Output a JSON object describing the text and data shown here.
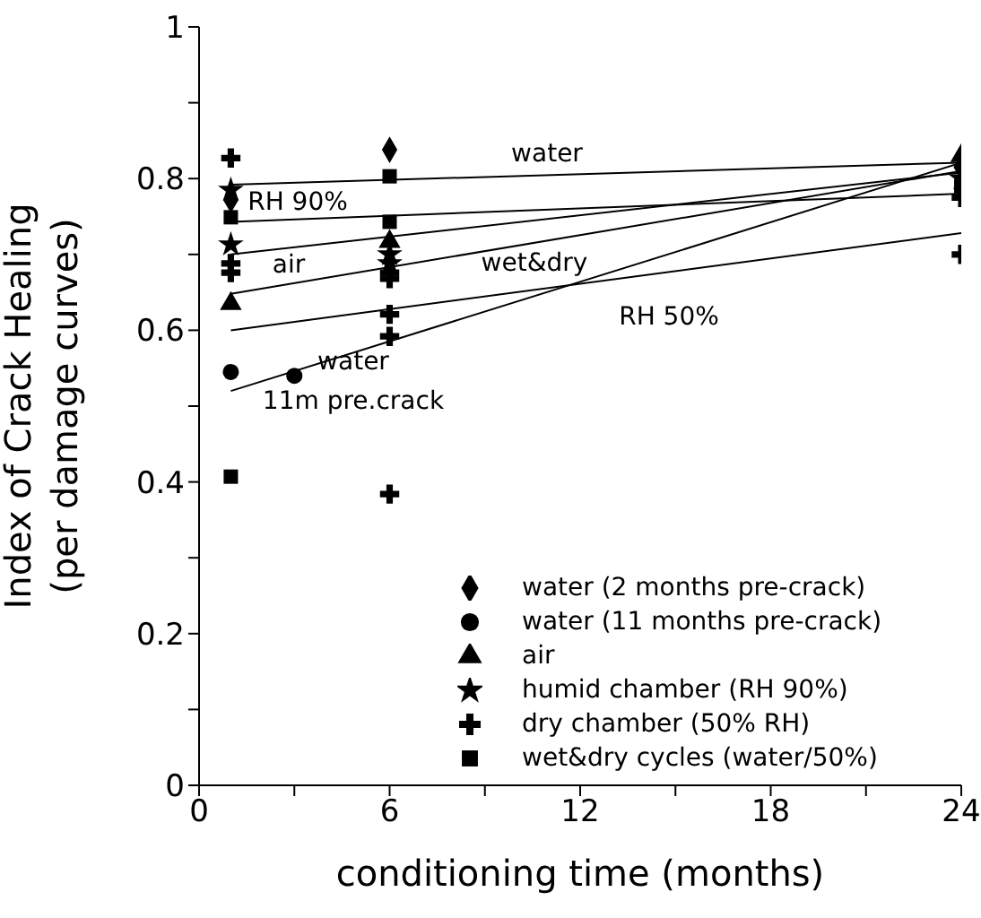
{
  "chart_data": {
    "type": "scatter",
    "xlabel": "conditioning time (months)",
    "ylabel": "Index of Crack Healing (per damage curves)",
    "xlim": [
      0,
      24
    ],
    "xticks": [
      0,
      {
        "value": 3,
        "label": null
      },
      6,
      {
        "value": 9,
        "label": null
      },
      12,
      {
        "value": 15,
        "label": null
      },
      18,
      {
        "value": 21,
        "label": null
      },
      24
    ],
    "ylim": [
      0,
      1
    ],
    "yticks": [
      0,
      {
        "value": 0.1,
        "label": null
      },
      0.2,
      {
        "value": 0.3,
        "label": null
      },
      0.4,
      {
        "value": 0.5,
        "label": null
      },
      0.6,
      {
        "value": 0.7,
        "label": null
      },
      0.8,
      {
        "value": 0.9,
        "label": null
      },
      1
    ],
    "grid": false,
    "legend": "bottom right",
    "series": [
      {
        "name": "water (2 months pre-crack)",
        "marker": "diamond",
        "color": "#000000",
        "x": [
          1,
          6,
          24
        ],
        "values": [
          0.772,
          0.838,
          0.815
        ]
      },
      {
        "name": "water (11 months pre-crack)",
        "marker": "circle",
        "color": "#000000",
        "x": [
          1,
          3
        ],
        "values": [
          0.545,
          0.54
        ]
      },
      {
        "name": "air",
        "marker": "triangle",
        "color": "#000000",
        "x": [
          1,
          6,
          24
        ],
        "values": [
          0.635,
          0.717,
          0.83
        ]
      },
      {
        "name": "humid chamber (RH 90%)",
        "marker": "star",
        "color": "#000000",
        "x": [
          1,
          1,
          6,
          6,
          24
        ],
        "values": [
          0.785,
          0.713,
          0.7,
          0.688,
          0.8
        ]
      },
      {
        "name": "dry chamber (50% RH)",
        "marker": "cross",
        "color": "#000000",
        "x": [
          1,
          1,
          1,
          6,
          6,
          6,
          6,
          6,
          24,
          24
        ],
        "values": [
          0.827,
          0.688,
          0.676,
          0.676,
          0.668,
          0.621,
          0.592,
          0.384,
          0.775,
          0.7
        ]
      },
      {
        "name": "wet&dry cycles (water/50%)",
        "marker": "square",
        "color": "#000000",
        "x": [
          1,
          1,
          6,
          6,
          24
        ],
        "values": [
          0.749,
          0.407,
          0.803,
          0.743,
          0.79
        ]
      },
      {
        "type": "line",
        "marker": "none",
        "color": "#000000",
        "x": [
          1,
          24
        ],
        "values": [
          0.792,
          0.821
        ]
      },
      {
        "type": "line",
        "marker": "none",
        "color": "#000000",
        "x": [
          1,
          24
        ],
        "values": [
          0.743,
          0.78
        ]
      },
      {
        "type": "line",
        "marker": "none",
        "color": "#000000",
        "x": [
          1,
          24
        ],
        "values": [
          0.7,
          0.808
        ]
      },
      {
        "type": "line",
        "marker": "none",
        "color": "#000000",
        "x": [
          1,
          24
        ],
        "values": [
          0.648,
          0.81
        ]
      },
      {
        "type": "line",
        "marker": "none",
        "color": "#000000",
        "x": [
          1,
          24
        ],
        "values": [
          0.6,
          0.728
        ]
      },
      {
        "type": "line",
        "marker": "none",
        "color": "#000000",
        "x": [
          1,
          24
        ],
        "values": [
          0.52,
          0.821
        ]
      }
    ],
    "annotations": [
      "water",
      "RH 90%",
      "air",
      "wet&dry",
      "RH 50%",
      "water",
      "11m pre.crack"
    ]
  }
}
